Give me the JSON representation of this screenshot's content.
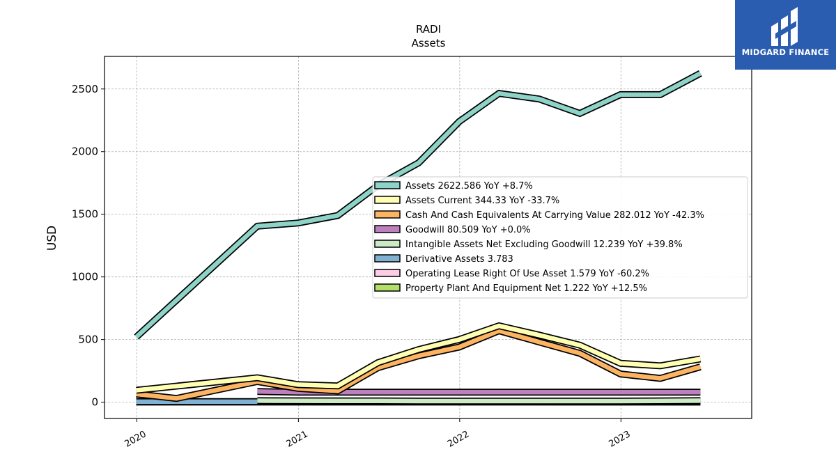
{
  "brand": {
    "name": "MIDGARD FINANCE",
    "bg_color": "#2a5db0"
  },
  "chart_data": {
    "type": "line",
    "title": "RADI",
    "subtitle": "Assets",
    "ylabel": "USD",
    "xlabel": "",
    "x_ticks": [
      "2020",
      "2021",
      "2022",
      "2023"
    ],
    "y_ticks": [
      0,
      500,
      1000,
      1500,
      2000,
      2500
    ],
    "xlim": [
      "2019-10-20",
      "2023-10-24"
    ],
    "ylim": [
      -130,
      2760
    ],
    "grid": true,
    "legend_position": "center-right",
    "series": [
      {
        "name": "Assets",
        "legend": "Assets  2622.586 YoY +8.7%",
        "color": "#8dd3c7",
        "points": [
          [
            "2019-12-31",
            520
          ],
          [
            "2020-09-30",
            1405
          ],
          [
            "2020-12-31",
            1430
          ],
          [
            "2021-03-31",
            1490
          ],
          [
            "2021-06-30",
            1730
          ],
          [
            "2021-09-30",
            1910
          ],
          [
            "2021-12-31",
            2240
          ],
          [
            "2022-03-31",
            2465
          ],
          [
            "2022-06-30",
            2420
          ],
          [
            "2022-09-30",
            2305
          ],
          [
            "2022-12-31",
            2455
          ],
          [
            "2023-03-31",
            2455
          ],
          [
            "2023-06-30",
            2625
          ]
        ]
      },
      {
        "name": "Assets Current",
        "legend": "Assets Current  344.33 YoY -33.7%",
        "color": "#ffffb3",
        "points": [
          [
            "2019-12-31",
            95
          ],
          [
            "2020-09-30",
            195
          ],
          [
            "2020-12-31",
            140
          ],
          [
            "2021-03-31",
            130
          ],
          [
            "2021-06-30",
            315
          ],
          [
            "2021-09-30",
            420
          ],
          [
            "2021-12-31",
            500
          ],
          [
            "2022-03-31",
            610
          ],
          [
            "2022-06-30",
            535
          ],
          [
            "2022-09-30",
            455
          ],
          [
            "2022-12-31",
            310
          ],
          [
            "2023-03-31",
            290
          ],
          [
            "2023-06-30",
            345
          ]
        ]
      },
      {
        "name": "Cash And Cash Equivalents At Carrying Value",
        "legend": "Cash And Cash Equivalents At Carrying Value  282.012 YoY -42.3%",
        "color": "#fdb462",
        "points": [
          [
            "2019-12-31",
            65
          ],
          [
            "2020-03-31",
            30
          ],
          [
            "2020-09-30",
            165
          ],
          [
            "2020-12-31",
            110
          ],
          [
            "2021-03-31",
            90
          ],
          [
            "2021-06-30",
            275
          ],
          [
            "2021-09-30",
            370
          ],
          [
            "2021-12-31",
            440
          ],
          [
            "2022-03-31",
            570
          ],
          [
            "2022-06-30",
            480
          ],
          [
            "2022-09-30",
            390
          ],
          [
            "2022-12-31",
            225
          ],
          [
            "2023-03-31",
            190
          ],
          [
            "2023-06-30",
            282
          ]
        ]
      },
      {
        "name": "Goodwill",
        "legend": "Goodwill  80.509 YoY +0.0%",
        "color": "#bc80bd",
        "points": [
          [
            "2020-09-30",
            85
          ],
          [
            "2020-12-31",
            80
          ],
          [
            "2021-03-31",
            80
          ],
          [
            "2021-06-30",
            80
          ],
          [
            "2021-09-30",
            80
          ],
          [
            "2021-12-31",
            80
          ],
          [
            "2022-03-31",
            80
          ],
          [
            "2022-06-30",
            80
          ],
          [
            "2022-09-30",
            80
          ],
          [
            "2022-12-31",
            80
          ],
          [
            "2023-03-31",
            80
          ],
          [
            "2023-06-30",
            80
          ]
        ]
      },
      {
        "name": "Intangible Assets Net Excluding Goodwill",
        "legend": "Intangible Assets Net Excluding Goodwill  12.239 YoY +39.8%",
        "color": "#ccebc5",
        "points": [
          [
            "2020-09-30",
            12
          ],
          [
            "2020-12-31",
            11
          ],
          [
            "2021-03-31",
            10
          ],
          [
            "2021-06-30",
            10
          ],
          [
            "2021-09-30",
            9
          ],
          [
            "2021-12-31",
            9
          ],
          [
            "2022-03-31",
            9
          ],
          [
            "2022-06-30",
            9
          ],
          [
            "2022-09-30",
            9
          ],
          [
            "2022-12-31",
            9
          ],
          [
            "2023-03-31",
            10
          ],
          [
            "2023-06-30",
            12
          ]
        ]
      },
      {
        "name": "Derivative Assets",
        "legend": "Derivative Assets  3.783",
        "color": "#80b1d3",
        "points": [
          [
            "2019-12-31",
            4
          ],
          [
            "2023-06-30",
            4
          ]
        ]
      },
      {
        "name": "Operating Lease Right Of Use Asset",
        "legend": "Operating Lease Right Of Use Asset  1.579 YoY -60.2%",
        "color": "#fccde5",
        "points": [
          [
            "2019-12-31",
            4
          ],
          [
            "2020-09-30",
            4
          ],
          [
            "2021-12-31",
            4
          ],
          [
            "2023-06-30",
            2
          ]
        ]
      },
      {
        "name": "Property Plant And Equipment Net",
        "legend": "Property Plant And Equipment Net  1.222 YoY +12.5%",
        "color": "#b3de69",
        "points": [
          [
            "2019-12-31",
            1
          ],
          [
            "2020-09-30",
            1
          ],
          [
            "2021-12-31",
            1
          ],
          [
            "2023-06-30",
            1
          ]
        ]
      }
    ]
  }
}
